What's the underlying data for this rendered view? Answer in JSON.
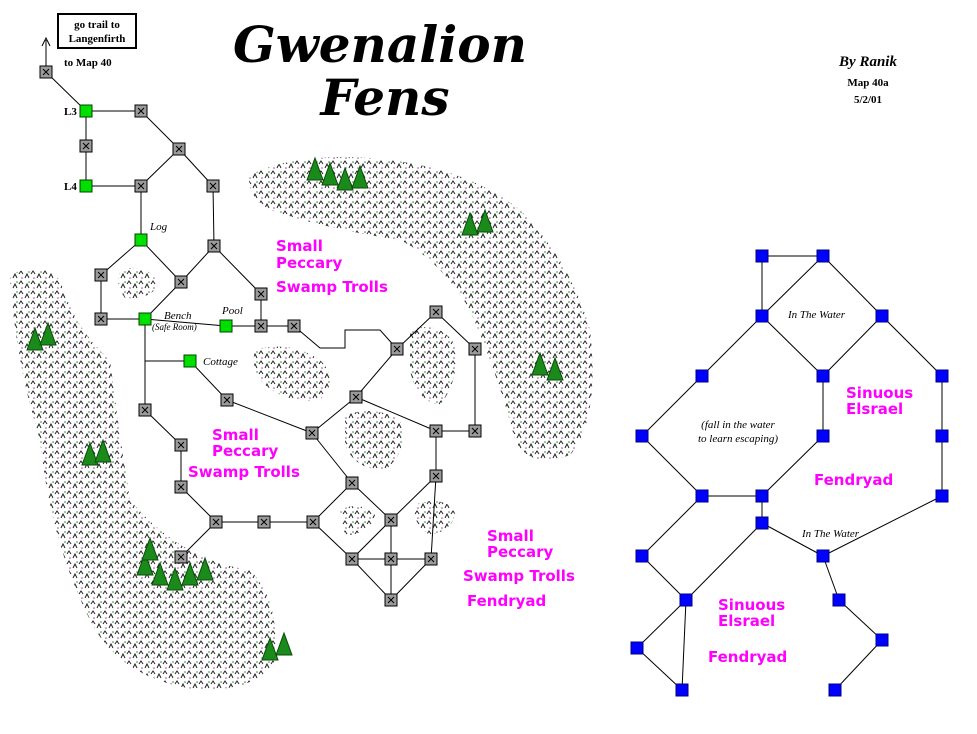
{
  "header": {
    "title_lines": [
      "Gwenalion",
      "Fens"
    ],
    "credit_lines": [
      "By Ranik",
      "Map 40a",
      "5/2/01"
    ]
  },
  "exit": {
    "box_lines": [
      "go trail to",
      "Langenfirth"
    ],
    "note": "to Map 40"
  },
  "room_labels": [
    "L3",
    "L4",
    "Log",
    "Bench",
    "(Safe Room)",
    "Pool",
    "Cottage",
    "In The Water",
    "(fall in the water",
    "to learn escaping)",
    "In The Water"
  ],
  "monster_groups": [
    [
      "Small",
      "Peccary",
      "Swamp Trolls"
    ],
    [
      "Small",
      "Peccary",
      "Swamp Trolls"
    ],
    [
      "Small",
      "Peccary",
      "Swamp Trolls",
      "Fendryad"
    ],
    [
      "Sinuous",
      "Elsrael",
      "Fendryad"
    ],
    [
      "Sinuous",
      "Elsrael",
      "Fendryad"
    ]
  ]
}
